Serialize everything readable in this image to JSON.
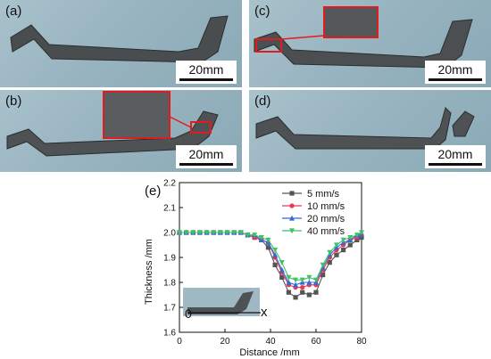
{
  "panels": {
    "a": {
      "label": "(a)",
      "scale": "20mm"
    },
    "b": {
      "label": "(b)",
      "scale": "20mm"
    },
    "c": {
      "label": "(c)",
      "scale": "20mm"
    },
    "d": {
      "label": "(d)",
      "scale": "20mm"
    }
  },
  "colors": {
    "series": [
      "#555555",
      "#e8384f",
      "#2f6bd1",
      "#3fc06b"
    ]
  },
  "chart_data": {
    "type": "line",
    "panel_label": "(e)",
    "xlabel": "Distance /mm",
    "ylabel": "Thickness /mm",
    "xlim": [
      0,
      80
    ],
    "ylim": [
      1.6,
      2.2
    ],
    "xticks": [
      "0",
      "20",
      "40",
      "60",
      "80"
    ],
    "yticks": [
      "1.6",
      "1.7",
      "1.8",
      "1.9",
      "2.0",
      "2.1",
      "2.2"
    ],
    "legend_position": "top-right",
    "inset_axis_labels": {
      "origin": "0",
      "x": "x"
    },
    "series": [
      {
        "name": "5 mm/s",
        "marker": "square",
        "x": [
          0,
          3,
          6,
          9,
          12,
          15,
          18,
          21,
          24,
          27,
          30,
          33,
          36,
          39,
          42,
          45,
          48,
          51,
          54,
          57,
          60,
          63,
          66,
          69,
          72,
          75,
          78,
          80
        ],
        "y": [
          2.0,
          2.0,
          2.0,
          2.0,
          2.0,
          2.0,
          2.0,
          2.0,
          2.0,
          2.0,
          1.99,
          1.98,
          1.97,
          1.94,
          1.87,
          1.82,
          1.76,
          1.74,
          1.76,
          1.75,
          1.76,
          1.83,
          1.88,
          1.91,
          1.93,
          1.95,
          1.97,
          1.98
        ]
      },
      {
        "name": "10 mm/s",
        "marker": "circle",
        "x": [
          0,
          3,
          6,
          9,
          12,
          15,
          18,
          21,
          24,
          27,
          30,
          33,
          36,
          39,
          42,
          45,
          48,
          51,
          54,
          57,
          60,
          63,
          66,
          69,
          72,
          75,
          78,
          80
        ],
        "y": [
          2.0,
          2.0,
          2.0,
          2.0,
          2.0,
          2.0,
          2.0,
          2.0,
          2.0,
          2.0,
          1.99,
          1.98,
          1.97,
          1.96,
          1.9,
          1.84,
          1.79,
          1.78,
          1.78,
          1.79,
          1.79,
          1.85,
          1.9,
          1.93,
          1.95,
          1.97,
          1.98,
          1.99
        ]
      },
      {
        "name": "20 mm/s",
        "marker": "triangle-up",
        "x": [
          0,
          3,
          6,
          9,
          12,
          15,
          18,
          21,
          24,
          27,
          30,
          33,
          36,
          39,
          42,
          45,
          48,
          51,
          54,
          57,
          60,
          63,
          66,
          69,
          72,
          75,
          78,
          80
        ],
        "y": [
          2.0,
          2.0,
          2.0,
          2.0,
          2.0,
          2.0,
          2.0,
          2.0,
          2.0,
          2.0,
          1.99,
          1.99,
          1.97,
          1.96,
          1.91,
          1.85,
          1.8,
          1.79,
          1.8,
          1.8,
          1.8,
          1.86,
          1.91,
          1.94,
          1.96,
          1.97,
          1.99,
          1.99
        ]
      },
      {
        "name": "40 mm/s",
        "marker": "triangle-down",
        "x": [
          0,
          3,
          6,
          9,
          12,
          15,
          18,
          21,
          24,
          27,
          30,
          33,
          36,
          39,
          42,
          45,
          48,
          51,
          54,
          57,
          60,
          63,
          66,
          69,
          72,
          75,
          78,
          80
        ],
        "y": [
          2.0,
          2.0,
          2.0,
          2.0,
          2.0,
          2.0,
          2.0,
          2.0,
          2.0,
          2.0,
          1.99,
          1.99,
          1.98,
          1.97,
          1.93,
          1.88,
          1.82,
          1.81,
          1.81,
          1.82,
          1.81,
          1.87,
          1.92,
          1.95,
          1.97,
          1.98,
          1.99,
          2.0
        ]
      }
    ]
  }
}
